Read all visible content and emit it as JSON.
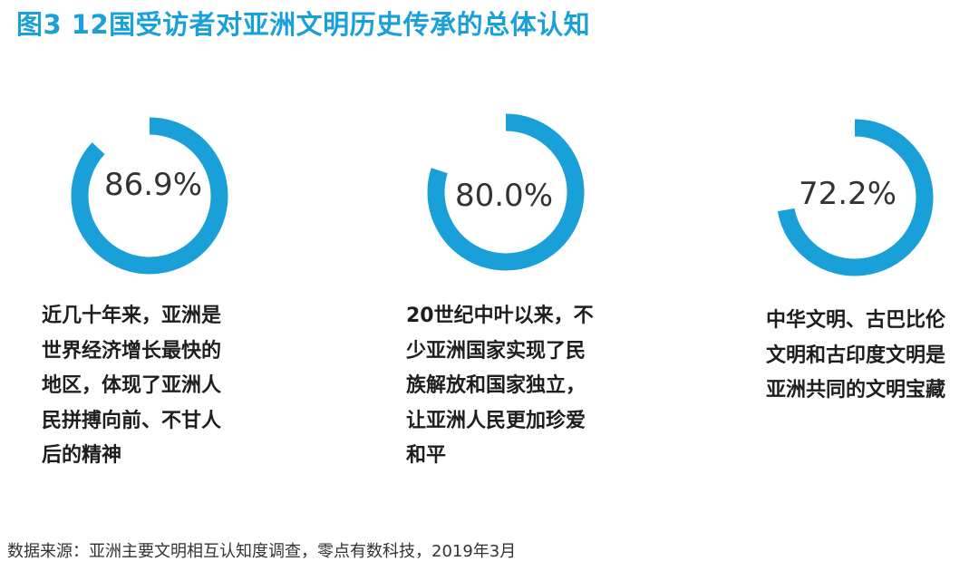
{
  "title": "图3  12国受访者对亚洲文明历史传承的总体认知",
  "chart_data": [
    {
      "type": "donut",
      "values": [
        86.9
      ],
      "unit": "%",
      "value_label": "86.9%",
      "description_lines": [
        "近几十年来，亚洲是",
        "世界经济增长最快的",
        "地区，体现了亚洲人",
        "民拼搏向前、不甘人",
        "后的精神"
      ]
    },
    {
      "type": "donut",
      "values": [
        80.0
      ],
      "unit": "%",
      "value_label": "80.0%",
      "description_lines": [
        "20世纪中叶以来，不",
        "少亚洲国家实现了民",
        "族解放和国家独立，",
        "让亚洲人民更加珍爱",
        "和平"
      ]
    },
    {
      "type": "donut",
      "values": [
        72.2
      ],
      "unit": "%",
      "value_label": "72.2%",
      "description_lines": [
        "中华文明、古巴比伦",
        "文明和古印度文明是",
        "亚洲共同的文明宝藏"
      ]
    }
  ],
  "colors": {
    "accent": "#1aa0d8",
    "ring": "#1aa0d8",
    "title": "#1aa0d8"
  },
  "source": "数据来源：亚洲主要文明相互认知度调查，零点有数科技，2019年3月"
}
